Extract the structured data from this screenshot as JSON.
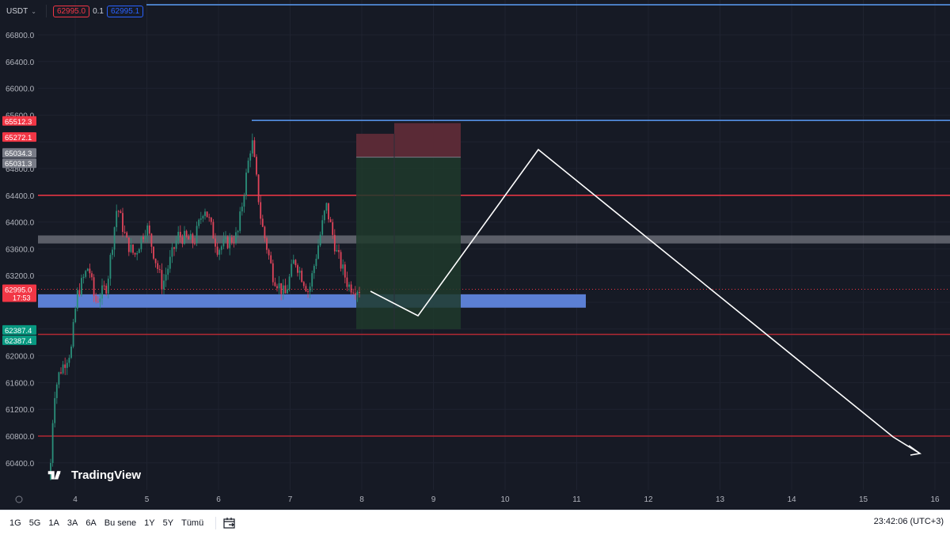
{
  "toolbar": {
    "symbol": "USDT",
    "sell_price": "62995.0",
    "spread": "0.1",
    "buy_price": "62995.1"
  },
  "price_axis": {
    "min": 60100,
    "max": 67300,
    "ticks": [
      "66800.0",
      "66400.0",
      "66000.0",
      "65600.0",
      "64800.0",
      "64400.0",
      "64000.0",
      "63600.0",
      "63200.0",
      "62000.0",
      "61600.0",
      "61200.0",
      "60800.0",
      "60400.0"
    ],
    "tick_values": [
      66800,
      66400,
      66000,
      65600,
      64800,
      64400,
      64000,
      63600,
      63200,
      62000,
      61600,
      61200,
      60800,
      60400
    ]
  },
  "time_axis": {
    "labels": [
      "4",
      "5",
      "6",
      "7",
      "8",
      "9",
      "10",
      "11",
      "12",
      "13",
      "14",
      "15",
      "16"
    ]
  },
  "price_labels": [
    {
      "text": "65512.3",
      "value": 65512.3,
      "color": "#f23645"
    },
    {
      "text": "65272.1",
      "value": 65272.1,
      "color": "#f23645"
    },
    {
      "text": "65034.3",
      "value": 65034.3,
      "color": "#787b86"
    },
    {
      "text": "65031.3",
      "value": 65031.3,
      "color": "#787b86"
    },
    {
      "text": "62995.0",
      "value": 62995.0,
      "color": "#f23645",
      "sub": "17:53"
    },
    {
      "text": "62387.4",
      "value": 62387.4,
      "color": "#089981"
    },
    {
      "text": "62387.4",
      "value": 62387.4,
      "color": "#089981"
    }
  ],
  "levels": [
    {
      "value": 67250,
      "color": "#5b9cf6"
    },
    {
      "value": 65520,
      "color": "#5b9cf6"
    },
    {
      "value": 64400,
      "color": "#f23645"
    },
    {
      "value": 62320,
      "color": "#b22833"
    },
    {
      "value": 60800,
      "color": "#b22833"
    }
  ],
  "zones": {
    "blue_support": {
      "top": 62920,
      "bottom": 62720,
      "color": "#5b7fd4"
    },
    "gray_resistance": {
      "top": 63800,
      "bottom": 63680,
      "color": "#9598a1"
    }
  },
  "position": {
    "entry": 64970,
    "stop": 65480,
    "target": 62400,
    "colors": {
      "loss": "#5a2a36",
      "profit": "#1e3a2c"
    }
  },
  "bottom": {
    "timeframes": [
      "1G",
      "5G",
      "1A",
      "3A",
      "6A",
      "Bu sene",
      "1Y",
      "5Y",
      "Tümü"
    ],
    "clock": "23:42:06 (UTC+3)"
  },
  "brand": {
    "name": "TradingView"
  }
}
